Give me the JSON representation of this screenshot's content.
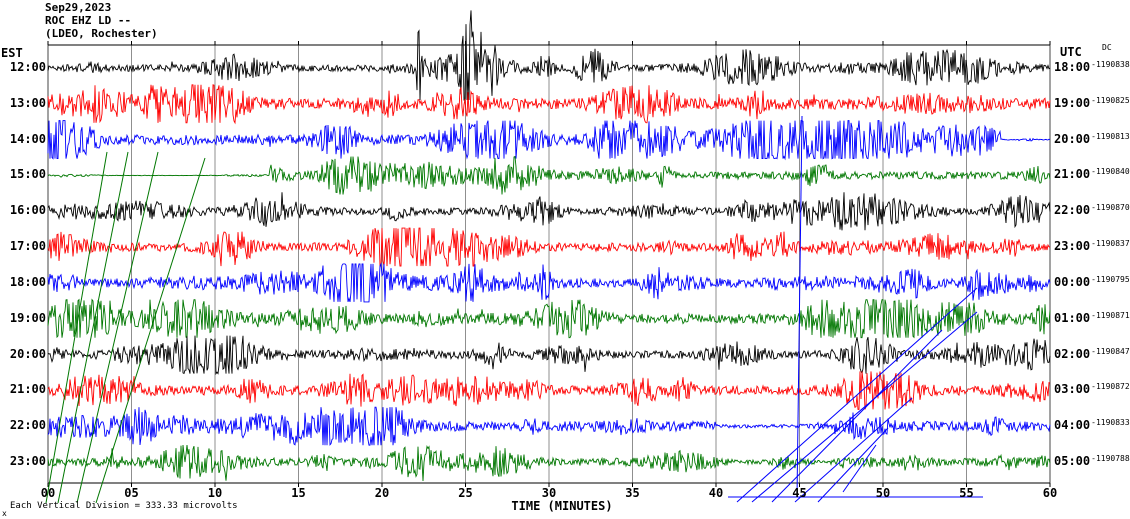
{
  "header": {
    "date": "Sep29,2023",
    "station": "ROC EHZ LD --",
    "location": "(LDEO, Rochester)"
  },
  "axes": {
    "left_timezone": "EST",
    "right_timezone": "UTC",
    "right_offset_label": "DC",
    "x_title": "TIME (MINUTES)",
    "x_ticks": [
      "00",
      "05",
      "10",
      "15",
      "20",
      "25",
      "30",
      "35",
      "40",
      "45",
      "50",
      "55",
      "60"
    ]
  },
  "footer": {
    "division_note": "Each Vertical Division = 333.33 microvolts",
    "corner_mark": "x"
  },
  "colors": {
    "black": "#000000",
    "red": "#ff0000",
    "blue": "#0000ff",
    "green": "#007700"
  },
  "chart_data": {
    "type": "line",
    "subtype": "seismogram_helicorder",
    "title": "ROC EHZ LD -- (LDEO, Rochester) Sep29,2023",
    "xlabel": "TIME (MINUTES)",
    "x_range_minutes": [
      0,
      60
    ],
    "gridline_interval_minutes": 5,
    "vertical_division_microvolts": 333.33,
    "description": "Twelve one-hour seismic waveform traces of continuous ground-motion noise with intermittent bursts; a large high-amplitude event cluster appears on the 12:00 EST trace near minutes 22-28. Diagonal green pick lines overlay minutes 0-9 (lower rows) and diagonal blue pick lines overlay minutes 41-56 (lower right rows).",
    "rows": [
      {
        "est": "12:00",
        "utc": "18:00",
        "dc": "-1190838",
        "color": "black"
      },
      {
        "est": "13:00",
        "utc": "19:00",
        "dc": "-1190825",
        "color": "red"
      },
      {
        "est": "14:00",
        "utc": "20:00",
        "dc": "-1190813",
        "color": "blue"
      },
      {
        "est": "15:00",
        "utc": "21:00",
        "dc": "-1190840",
        "color": "green"
      },
      {
        "est": "16:00",
        "utc": "22:00",
        "dc": "-1190870",
        "color": "black"
      },
      {
        "est": "17:00",
        "utc": "23:00",
        "dc": "-1190837",
        "color": "red"
      },
      {
        "est": "18:00",
        "utc": "00:00",
        "dc": "-1190795",
        "color": "blue"
      },
      {
        "est": "19:00",
        "utc": "01:00",
        "dc": "-1190871",
        "color": "green"
      },
      {
        "est": "20:00",
        "utc": "02:00",
        "dc": "-1190847",
        "color": "black"
      },
      {
        "est": "21:00",
        "utc": "03:00",
        "dc": "-1190872",
        "color": "red"
      },
      {
        "est": "22:00",
        "utc": "04:00",
        "dc": "-1190833",
        "color": "blue"
      },
      {
        "est": "23:00",
        "utc": "05:00",
        "dc": "-1190788",
        "color": "green"
      }
    ],
    "annotations": {
      "green_pick_lines": 4,
      "blue_pick_lines": 7,
      "blue_underline_minutes": [
        40.7,
        56.0
      ]
    }
  }
}
